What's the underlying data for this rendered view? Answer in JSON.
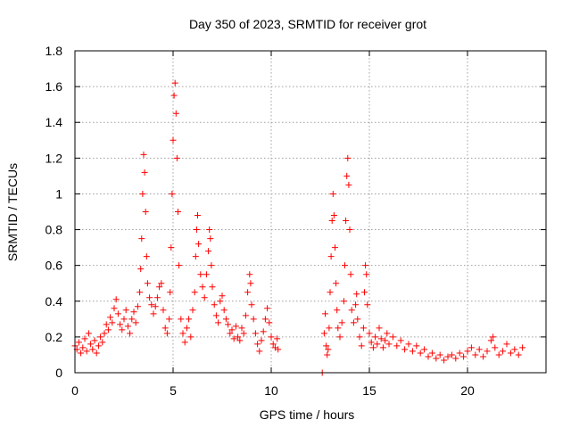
{
  "chart_data": {
    "type": "scatter",
    "title": "Day 350 of 2023, SRMTID for receiver grot",
    "xlabel": "GPS time / hours",
    "ylabel": "SRMTID / TECUs",
    "xlim": [
      0,
      24
    ],
    "ylim": [
      0,
      1.8
    ],
    "x_ticks": [
      0,
      5,
      10,
      15,
      20
    ],
    "x_tick_labels": [
      "0",
      "5",
      "10",
      "15",
      "20"
    ],
    "y_ticks": [
      0,
      0.2,
      0.4,
      0.6,
      0.8,
      1.0,
      1.2,
      1.4,
      1.6,
      1.8
    ],
    "y_tick_labels": [
      "0",
      "0.2",
      "0.4",
      "0.6",
      "0.8",
      "1",
      "1.2",
      "1.4",
      "1.6",
      "1.8"
    ],
    "grid": true,
    "marker": "+",
    "marker_color": "#ff0000",
    "series": [
      {
        "name": "SRMTID",
        "points": [
          [
            0.0,
            0.15
          ],
          [
            0.1,
            0.13
          ],
          [
            0.2,
            0.17
          ],
          [
            0.3,
            0.11
          ],
          [
            0.4,
            0.14
          ],
          [
            0.5,
            0.19
          ],
          [
            0.6,
            0.12
          ],
          [
            0.7,
            0.22
          ],
          [
            0.8,
            0.16
          ],
          [
            0.9,
            0.13
          ],
          [
            1.0,
            0.18
          ],
          [
            1.1,
            0.11
          ],
          [
            1.2,
            0.15
          ],
          [
            1.3,
            0.2
          ],
          [
            1.4,
            0.17
          ],
          [
            1.5,
            0.22
          ],
          [
            1.6,
            0.27
          ],
          [
            1.7,
            0.24
          ],
          [
            1.8,
            0.31
          ],
          [
            1.9,
            0.28
          ],
          [
            2.0,
            0.36
          ],
          [
            2.1,
            0.41
          ],
          [
            2.2,
            0.33
          ],
          [
            2.3,
            0.27
          ],
          [
            2.4,
            0.24
          ],
          [
            2.5,
            0.3
          ],
          [
            2.6,
            0.35
          ],
          [
            2.7,
            0.26
          ],
          [
            2.8,
            0.22
          ],
          [
            2.9,
            0.3
          ],
          [
            3.0,
            0.34
          ],
          [
            3.1,
            0.28
          ],
          [
            3.2,
            0.37
          ],
          [
            3.3,
            0.45
          ],
          [
            3.35,
            0.58
          ],
          [
            3.4,
            0.75
          ],
          [
            3.45,
            1.0
          ],
          [
            3.5,
            1.22
          ],
          [
            3.55,
            1.12
          ],
          [
            3.6,
            0.9
          ],
          [
            3.65,
            0.65
          ],
          [
            3.7,
            0.5
          ],
          [
            3.8,
            0.42
          ],
          [
            3.9,
            0.38
          ],
          [
            4.0,
            0.33
          ],
          [
            4.1,
            0.37
          ],
          [
            4.2,
            0.42
          ],
          [
            4.3,
            0.48
          ],
          [
            4.4,
            0.5
          ],
          [
            4.5,
            0.35
          ],
          [
            4.6,
            0.25
          ],
          [
            4.7,
            0.22
          ],
          [
            4.8,
            0.3
          ],
          [
            4.85,
            0.45
          ],
          [
            4.9,
            0.7
          ],
          [
            4.95,
            1.0
          ],
          [
            5.0,
            1.3
          ],
          [
            5.05,
            1.55
          ],
          [
            5.1,
            1.62
          ],
          [
            5.15,
            1.45
          ],
          [
            5.2,
            1.2
          ],
          [
            5.25,
            0.9
          ],
          [
            5.3,
            0.6
          ],
          [
            5.4,
            0.3
          ],
          [
            5.5,
            0.22
          ],
          [
            5.6,
            0.17
          ],
          [
            5.7,
            0.25
          ],
          [
            5.8,
            0.3
          ],
          [
            5.9,
            0.2
          ],
          [
            6.0,
            0.35
          ],
          [
            6.1,
            0.45
          ],
          [
            6.15,
            0.65
          ],
          [
            6.2,
            0.8
          ],
          [
            6.25,
            0.88
          ],
          [
            6.3,
            0.72
          ],
          [
            6.4,
            0.55
          ],
          [
            6.5,
            0.48
          ],
          [
            6.6,
            0.42
          ],
          [
            6.7,
            0.55
          ],
          [
            6.8,
            0.68
          ],
          [
            6.85,
            0.8
          ],
          [
            6.9,
            0.75
          ],
          [
            6.95,
            0.6
          ],
          [
            7.0,
            0.48
          ],
          [
            7.1,
            0.38
          ],
          [
            7.2,
            0.32
          ],
          [
            7.3,
            0.28
          ],
          [
            7.4,
            0.4
          ],
          [
            7.5,
            0.43
          ],
          [
            7.6,
            0.35
          ],
          [
            7.7,
            0.3
          ],
          [
            7.8,
            0.27
          ],
          [
            7.9,
            0.22
          ],
          [
            8.0,
            0.24
          ],
          [
            8.1,
            0.19
          ],
          [
            8.2,
            0.26
          ],
          [
            8.3,
            0.2
          ],
          [
            8.4,
            0.18
          ],
          [
            8.5,
            0.25
          ],
          [
            8.6,
            0.22
          ],
          [
            8.7,
            0.32
          ],
          [
            8.8,
            0.45
          ],
          [
            8.9,
            0.55
          ],
          [
            8.95,
            0.5
          ],
          [
            9.0,
            0.38
          ],
          [
            9.1,
            0.3
          ],
          [
            9.2,
            0.22
          ],
          [
            9.3,
            0.16
          ],
          [
            9.4,
            0.12
          ],
          [
            9.5,
            0.18
          ],
          [
            9.6,
            0.23
          ],
          [
            9.7,
            0.3
          ],
          [
            9.8,
            0.36
          ],
          [
            9.9,
            0.28
          ],
          [
            10.0,
            0.2
          ],
          [
            10.1,
            0.16
          ],
          [
            10.2,
            0.14
          ],
          [
            10.3,
            0.19
          ],
          [
            10.35,
            0.13
          ],
          [
            12.6,
            0.0
          ],
          [
            12.7,
            0.22
          ],
          [
            12.75,
            0.33
          ],
          [
            12.8,
            0.15
          ],
          [
            12.85,
            0.1
          ],
          [
            12.9,
            0.13
          ],
          [
            12.95,
            0.25
          ],
          [
            13.0,
            0.45
          ],
          [
            13.05,
            0.65
          ],
          [
            13.1,
            0.85
          ],
          [
            13.15,
            1.0
          ],
          [
            13.2,
            0.88
          ],
          [
            13.25,
            0.7
          ],
          [
            13.3,
            0.5
          ],
          [
            13.35,
            0.35
          ],
          [
            13.4,
            0.25
          ],
          [
            13.5,
            0.2
          ],
          [
            13.6,
            0.28
          ],
          [
            13.7,
            0.4
          ],
          [
            13.75,
            0.6
          ],
          [
            13.8,
            0.85
          ],
          [
            13.85,
            1.1
          ],
          [
            13.9,
            1.2
          ],
          [
            13.95,
            1.05
          ],
          [
            14.0,
            0.8
          ],
          [
            14.05,
            0.55
          ],
          [
            14.1,
            0.35
          ],
          [
            14.2,
            0.28
          ],
          [
            14.3,
            0.38
          ],
          [
            14.35,
            0.44
          ],
          [
            14.4,
            0.3
          ],
          [
            14.5,
            0.2
          ],
          [
            14.6,
            0.15
          ],
          [
            14.7,
            0.25
          ],
          [
            14.75,
            0.45
          ],
          [
            14.8,
            0.6
          ],
          [
            14.85,
            0.55
          ],
          [
            14.9,
            0.38
          ],
          [
            15.0,
            0.22
          ],
          [
            15.1,
            0.17
          ],
          [
            15.2,
            0.14
          ],
          [
            15.3,
            0.2
          ],
          [
            15.4,
            0.16
          ],
          [
            15.5,
            0.25
          ],
          [
            15.6,
            0.19
          ],
          [
            15.7,
            0.14
          ],
          [
            15.8,
            0.18
          ],
          [
            15.9,
            0.22
          ],
          [
            16.0,
            0.16
          ],
          [
            16.2,
            0.2
          ],
          [
            16.4,
            0.15
          ],
          [
            16.6,
            0.18
          ],
          [
            16.8,
            0.13
          ],
          [
            17.0,
            0.16
          ],
          [
            17.2,
            0.12
          ],
          [
            17.4,
            0.15
          ],
          [
            17.6,
            0.11
          ],
          [
            17.8,
            0.13
          ],
          [
            18.0,
            0.09
          ],
          [
            18.2,
            0.11
          ],
          [
            18.4,
            0.08
          ],
          [
            18.6,
            0.1
          ],
          [
            18.8,
            0.07
          ],
          [
            19.0,
            0.09
          ],
          [
            19.2,
            0.1
          ],
          [
            19.4,
            0.08
          ],
          [
            19.6,
            0.11
          ],
          [
            19.8,
            0.09
          ],
          [
            20.0,
            0.12
          ],
          [
            20.2,
            0.14
          ],
          [
            20.4,
            0.1
          ],
          [
            20.6,
            0.13
          ],
          [
            20.8,
            0.09
          ],
          [
            21.0,
            0.12
          ],
          [
            21.2,
            0.18
          ],
          [
            21.3,
            0.2
          ],
          [
            21.4,
            0.14
          ],
          [
            21.6,
            0.1
          ],
          [
            21.8,
            0.12
          ],
          [
            22.0,
            0.16
          ],
          [
            22.2,
            0.11
          ],
          [
            22.4,
            0.13
          ],
          [
            22.6,
            0.1
          ],
          [
            22.8,
            0.14
          ]
        ]
      }
    ]
  }
}
